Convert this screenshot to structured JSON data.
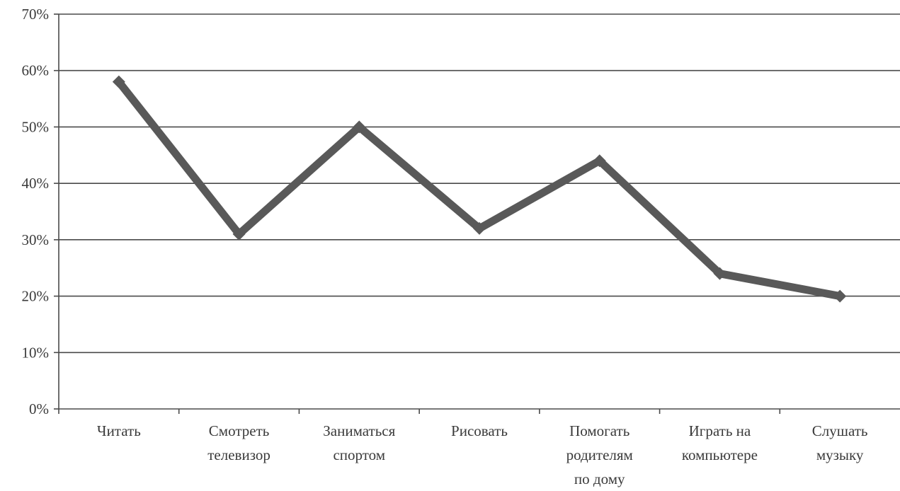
{
  "chart_data": {
    "type": "line",
    "title": "",
    "xlabel": "",
    "ylabel": "",
    "categories": [
      [
        "Читать"
      ],
      [
        "Смотреть",
        "телевизор"
      ],
      [
        "Заниматься",
        "спортом"
      ],
      [
        "Рисовать"
      ],
      [
        "Помогать",
        "родителям",
        "по дому"
      ],
      [
        "Играть на",
        "компьютере"
      ],
      [
        "Слушать",
        "музыку"
      ]
    ],
    "series": [
      {
        "values": [
          0.58,
          0.31,
          0.5,
          0.32,
          0.44,
          0.24,
          0.2
        ],
        "color": "#595959"
      }
    ],
    "ylim": [
      0,
      0.7
    ],
    "y_ticks": [
      "0%",
      "10%",
      "20%",
      "30%",
      "40%",
      "50%",
      "60%",
      "70%"
    ],
    "grid": true,
    "legend": "none",
    "marker": "diamond"
  }
}
